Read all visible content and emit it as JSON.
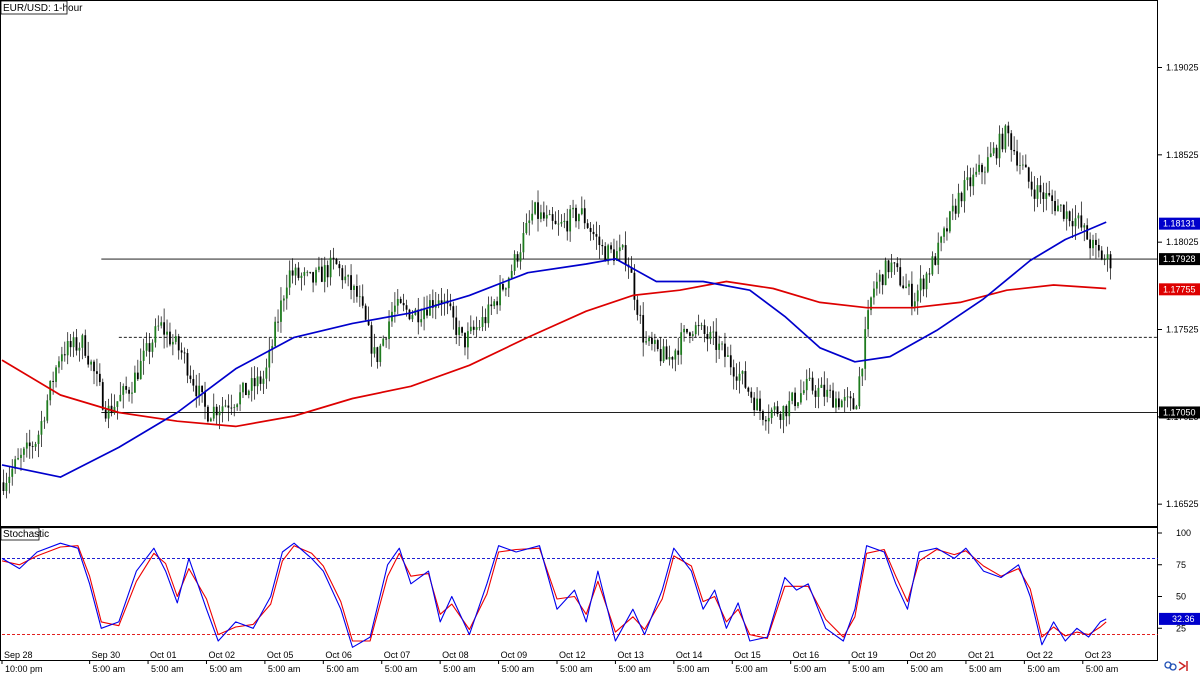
{
  "window": {
    "title": "EUR/USD: 1-hour",
    "indicator_label": "Stochastic"
  },
  "colors": {
    "bull_body": "#1e7b1e",
    "bear_body": "#000000",
    "wick": "#000000",
    "ma_fast": "#0000cc",
    "ma_slow": "#dd0000",
    "stoch_k": "#0000ee",
    "stoch_d": "#ee0000",
    "level_line": "#000000"
  },
  "chart_data": [
    {
      "type": "candlestick",
      "title": "EUR/USD: 1-hour",
      "ylim": [
        1.164,
        1.194
      ],
      "y_ticks": [
        "1.16525",
        "1.17025",
        "1.17525",
        "1.18025",
        "1.18525",
        "1.19025"
      ],
      "x_ticks": [
        {
          "pos": 0.0,
          "date": "Sep 28",
          "time": "10:00 pm"
        },
        {
          "pos": 15,
          "date": "Sep 30",
          "time": "5:00 am"
        },
        {
          "pos": 25,
          "date": "Oct 01",
          "time": "5:00 am"
        },
        {
          "pos": 35,
          "date": "Oct 02",
          "time": "5:00 am"
        },
        {
          "pos": 45,
          "date": "Oct 05",
          "time": "5:00 am"
        },
        {
          "pos": 55,
          "date": "Oct 06",
          "time": "5:00 am"
        },
        {
          "pos": 65,
          "date": "Oct 07",
          "time": "5:00 am"
        },
        {
          "pos": 75,
          "date": "Oct 08",
          "time": "5:00 am"
        },
        {
          "pos": 85,
          "date": "Oct 09",
          "time": "5:00 am"
        },
        {
          "pos": 95,
          "date": "Oct 12",
          "time": "5:00 am"
        },
        {
          "pos": 105,
          "date": "Oct 13",
          "time": "5:00 am"
        },
        {
          "pos": 115,
          "date": "Oct 14",
          "time": "5:00 am"
        },
        {
          "pos": 125,
          "date": "Oct 15",
          "time": "5:00 am"
        },
        {
          "pos": 135,
          "date": "Oct 16",
          "time": "5:00 am"
        },
        {
          "pos": 145,
          "date": "Oct 19",
          "time": "5:00 am"
        },
        {
          "pos": 155,
          "date": "Oct 20",
          "time": "5:00 am"
        },
        {
          "pos": 165,
          "date": "Oct 21",
          "time": "5:00 am"
        },
        {
          "pos": 175,
          "date": "Oct 22",
          "time": "5:00 am"
        },
        {
          "pos": 185,
          "date": "Oct 23",
          "time": "5:00 am"
        }
      ],
      "x_range": [
        0,
        190
      ],
      "price_path": [
        [
          0,
          1.1665
        ],
        [
          6,
          1.169
        ],
        [
          10,
          1.174
        ],
        [
          14,
          1.1745
        ],
        [
          18,
          1.1705
        ],
        [
          22,
          1.172
        ],
        [
          27,
          1.1755
        ],
        [
          31,
          1.1738
        ],
        [
          35,
          1.1705
        ],
        [
          40,
          1.1713
        ],
        [
          45,
          1.1725
        ],
        [
          49,
          1.1785
        ],
        [
          53,
          1.178
        ],
        [
          57,
          1.179
        ],
        [
          61,
          1.177
        ],
        [
          64,
          1.1735
        ],
        [
          67,
          1.1765
        ],
        [
          71,
          1.1762
        ],
        [
          75,
          1.1772
        ],
        [
          79,
          1.1745
        ],
        [
          83,
          1.176
        ],
        [
          87,
          1.1785
        ],
        [
          91,
          1.182
        ],
        [
          95,
          1.181
        ],
        [
          99,
          1.182
        ],
        [
          103,
          1.1797
        ],
        [
          107,
          1.1795
        ],
        [
          110,
          1.1745
        ],
        [
          114,
          1.1735
        ],
        [
          118,
          1.1755
        ],
        [
          122,
          1.1745
        ],
        [
          126,
          1.1728
        ],
        [
          130,
          1.1705
        ],
        [
          134,
          1.1707
        ],
        [
          138,
          1.172
        ],
        [
          142,
          1.1714
        ],
        [
          146,
          1.1708
        ],
        [
          149,
          1.1775
        ],
        [
          152,
          1.179
        ],
        [
          156,
          1.177
        ],
        [
          160,
          1.1795
        ],
        [
          164,
          1.183
        ],
        [
          168,
          1.1845
        ],
        [
          172,
          1.1865
        ],
        [
          176,
          1.1835
        ],
        [
          180,
          1.1825
        ],
        [
          184,
          1.1815
        ],
        [
          187,
          1.1798
        ],
        [
          189,
          1.1792
        ]
      ],
      "ma_fast": [
        [
          0,
          1.1675
        ],
        [
          10,
          1.1668
        ],
        [
          20,
          1.1685
        ],
        [
          30,
          1.1705
        ],
        [
          40,
          1.173
        ],
        [
          50,
          1.1748
        ],
        [
          60,
          1.1756
        ],
        [
          70,
          1.1762
        ],
        [
          80,
          1.1772
        ],
        [
          90,
          1.1785
        ],
        [
          100,
          1.179
        ],
        [
          105,
          1.1793
        ],
        [
          112,
          1.178
        ],
        [
          120,
          1.178
        ],
        [
          128,
          1.1775
        ],
        [
          134,
          1.176
        ],
        [
          140,
          1.1742
        ],
        [
          146,
          1.1734
        ],
        [
          152,
          1.1737
        ],
        [
          160,
          1.1752
        ],
        [
          168,
          1.177
        ],
        [
          176,
          1.1792
        ],
        [
          182,
          1.1804
        ],
        [
          189,
          1.1814
        ]
      ],
      "ma_slow": [
        [
          0,
          1.1735
        ],
        [
          10,
          1.1715
        ],
        [
          20,
          1.1705
        ],
        [
          30,
          1.17
        ],
        [
          40,
          1.1697
        ],
        [
          50,
          1.1703
        ],
        [
          60,
          1.1713
        ],
        [
          70,
          1.172
        ],
        [
          80,
          1.1732
        ],
        [
          90,
          1.1748
        ],
        [
          100,
          1.1763
        ],
        [
          108,
          1.1772
        ],
        [
          116,
          1.1775
        ],
        [
          124,
          1.178
        ],
        [
          132,
          1.1776
        ],
        [
          140,
          1.1768
        ],
        [
          148,
          1.1765
        ],
        [
          156,
          1.1765
        ],
        [
          164,
          1.1768
        ],
        [
          172,
          1.1775
        ],
        [
          180,
          1.1778
        ],
        [
          189,
          1.1776
        ]
      ],
      "levels": [
        {
          "value": 1.17928,
          "style": "solid"
        },
        {
          "value": 1.1748,
          "style": "dashed"
        },
        {
          "value": 1.1705,
          "style": "solid"
        }
      ],
      "price_boxes": [
        {
          "value": 1.18131,
          "label": "1.18131",
          "bg": "#0000cc",
          "fg": "#ffffff"
        },
        {
          "value": 1.17928,
          "label": "1.17928",
          "bg": "#000000",
          "fg": "#ffffff"
        },
        {
          "value": 1.17755,
          "label": "1.17755",
          "bg": "#dd0000",
          "fg": "#ffffff"
        },
        {
          "value": 1.1705,
          "label": "1.17050",
          "bg": "#000000",
          "fg": "#ffffff"
        }
      ]
    },
    {
      "type": "line",
      "title": "Stochastic",
      "ylim": [
        0,
        100
      ],
      "y_ticks": [
        "25",
        "50",
        "75",
        "100"
      ],
      "levels": [
        {
          "value": 80,
          "color": "#0000cc",
          "style": "dashed"
        },
        {
          "value": 20,
          "color": "#dd0000",
          "style": "dashed"
        }
      ],
      "series": [
        {
          "key": "k",
          "values": [
            [
              0,
              80
            ],
            [
              3,
              72
            ],
            [
              6,
              85
            ],
            [
              10,
              92
            ],
            [
              13,
              88
            ],
            [
              15,
              60
            ],
            [
              17,
              25
            ],
            [
              20,
              30
            ],
            [
              23,
              70
            ],
            [
              26,
              88
            ],
            [
              28,
              70
            ],
            [
              30,
              45
            ],
            [
              32,
              80
            ],
            [
              35,
              40
            ],
            [
              37,
              15
            ],
            [
              40,
              30
            ],
            [
              43,
              25
            ],
            [
              46,
              50
            ],
            [
              48,
              85
            ],
            [
              50,
              92
            ],
            [
              53,
              80
            ],
            [
              55,
              70
            ],
            [
              58,
              40
            ],
            [
              60,
              10
            ],
            [
              63,
              18
            ],
            [
              66,
              75
            ],
            [
              68,
              88
            ],
            [
              70,
              60
            ],
            [
              73,
              70
            ],
            [
              75,
              30
            ],
            [
              77,
              50
            ],
            [
              80,
              20
            ],
            [
              83,
              60
            ],
            [
              85,
              90
            ],
            [
              88,
              85
            ],
            [
              92,
              90
            ],
            [
              95,
              40
            ],
            [
              98,
              55
            ],
            [
              100,
              30
            ],
            [
              102,
              70
            ],
            [
              105,
              15
            ],
            [
              108,
              40
            ],
            [
              110,
              20
            ],
            [
              113,
              55
            ],
            [
              115,
              88
            ],
            [
              118,
              70
            ],
            [
              120,
              40
            ],
            [
              122,
              55
            ],
            [
              124,
              25
            ],
            [
              126,
              45
            ],
            [
              128,
              15
            ],
            [
              131,
              18
            ],
            [
              134,
              65
            ],
            [
              136,
              55
            ],
            [
              138,
              60
            ],
            [
              141,
              25
            ],
            [
              144,
              15
            ],
            [
              146,
              40
            ],
            [
              148,
              90
            ],
            [
              151,
              85
            ],
            [
              153,
              60
            ],
            [
              155,
              40
            ],
            [
              157,
              85
            ],
            [
              160,
              88
            ],
            [
              163,
              80
            ],
            [
              165,
              88
            ],
            [
              168,
              70
            ],
            [
              171,
              65
            ],
            [
              174,
              75
            ],
            [
              176,
              50
            ],
            [
              178,
              12
            ],
            [
              180,
              30
            ],
            [
              182,
              15
            ],
            [
              184,
              25
            ],
            [
              186,
              18
            ],
            [
              188,
              30
            ],
            [
              189,
              32.36
            ]
          ]
        },
        {
          "key": "d",
          "values": [
            [
              0,
              78
            ],
            [
              3,
              75
            ],
            [
              6,
              82
            ],
            [
              10,
              89
            ],
            [
              13,
              90
            ],
            [
              15,
              66
            ],
            [
              17,
              30
            ],
            [
              20,
              27
            ],
            [
              23,
              62
            ],
            [
              26,
              84
            ],
            [
              28,
              76
            ],
            [
              30,
              50
            ],
            [
              32,
              72
            ],
            [
              35,
              48
            ],
            [
              37,
              20
            ],
            [
              40,
              26
            ],
            [
              43,
              28
            ],
            [
              46,
              44
            ],
            [
              48,
              78
            ],
            [
              50,
              90
            ],
            [
              53,
              84
            ],
            [
              55,
              74
            ],
            [
              58,
              46
            ],
            [
              60,
              15
            ],
            [
              63,
              15
            ],
            [
              66,
              66
            ],
            [
              68,
              84
            ],
            [
              70,
              66
            ],
            [
              73,
              68
            ],
            [
              75,
              36
            ],
            [
              77,
              44
            ],
            [
              80,
              24
            ],
            [
              83,
              52
            ],
            [
              85,
              85
            ],
            [
              88,
              87
            ],
            [
              92,
              88
            ],
            [
              95,
              48
            ],
            [
              98,
              50
            ],
            [
              100,
              36
            ],
            [
              102,
              62
            ],
            [
              105,
              22
            ],
            [
              108,
              34
            ],
            [
              110,
              24
            ],
            [
              113,
              48
            ],
            [
              115,
              82
            ],
            [
              118,
              74
            ],
            [
              120,
              46
            ],
            [
              122,
              50
            ],
            [
              124,
              30
            ],
            [
              126,
              40
            ],
            [
              128,
              20
            ],
            [
              131,
              17
            ],
            [
              134,
              58
            ],
            [
              136,
              58
            ],
            [
              138,
              58
            ],
            [
              141,
              32
            ],
            [
              144,
              18
            ],
            [
              146,
              34
            ],
            [
              148,
              84
            ],
            [
              151,
              87
            ],
            [
              153,
              66
            ],
            [
              155,
              46
            ],
            [
              157,
              78
            ],
            [
              160,
              87
            ],
            [
              163,
              83
            ],
            [
              165,
              86
            ],
            [
              168,
              74
            ],
            [
              171,
              66
            ],
            [
              174,
              72
            ],
            [
              176,
              56
            ],
            [
              178,
              18
            ],
            [
              180,
              26
            ],
            [
              182,
              19
            ],
            [
              184,
              22
            ],
            [
              186,
              20
            ],
            [
              188,
              26
            ],
            [
              189,
              30
            ]
          ]
        }
      ],
      "value_box": {
        "value": 32.36,
        "label": "32.36",
        "bg": "#0000cc",
        "fg": "#ffffff"
      }
    }
  ]
}
